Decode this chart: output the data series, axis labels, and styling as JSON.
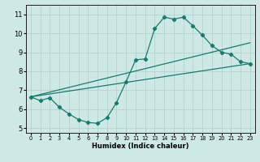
{
  "xlabel": "Humidex (Indice chaleur)",
  "xlim": [
    -0.5,
    23.5
  ],
  "ylim": [
    4.75,
    11.5
  ],
  "xticks": [
    0,
    1,
    2,
    3,
    4,
    5,
    6,
    7,
    8,
    9,
    10,
    11,
    12,
    13,
    14,
    15,
    16,
    17,
    18,
    19,
    20,
    21,
    22,
    23
  ],
  "yticks": [
    5,
    6,
    7,
    8,
    9,
    10,
    11
  ],
  "bg_color": "#cde8e5",
  "grid_color": "#aecfcc",
  "line_color": "#1a7a6e",
  "line1_x": [
    0,
    1,
    2,
    3,
    4,
    5,
    6,
    7,
    8,
    9,
    10,
    11,
    12,
    13,
    14,
    15,
    16,
    17,
    18,
    19,
    20,
    21,
    22,
    23
  ],
  "line1_y": [
    6.65,
    6.45,
    6.6,
    6.1,
    5.75,
    5.45,
    5.3,
    5.25,
    5.55,
    6.35,
    7.45,
    8.6,
    8.65,
    10.25,
    10.85,
    10.75,
    10.85,
    10.4,
    9.9,
    9.35,
    9.0,
    8.9,
    8.5,
    8.4
  ],
  "line2_x": [
    0,
    23
  ],
  "line2_y": [
    6.65,
    8.4
  ],
  "line3_x": [
    0,
    23
  ],
  "line3_y": [
    6.65,
    9.5
  ],
  "linewidth": 0.9,
  "markersize": 2.2
}
